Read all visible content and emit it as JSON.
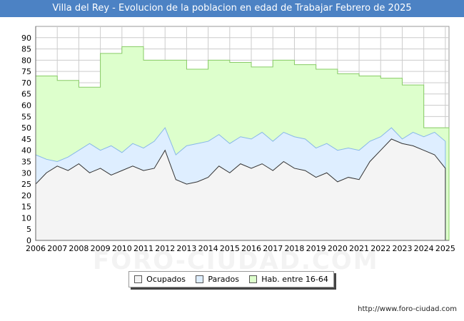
{
  "page": {
    "url": "http://www.foro-ciudad.com",
    "watermark": "FORO-CIUDAD.COM"
  },
  "colors": {
    "title_bg": "#4c82c4",
    "ocupados_fill": "#f4f4f4",
    "parados_fill": "#deeeff",
    "hab_fill": "#ddffcc",
    "hab_line": "#88cc66",
    "parados_line": "#88b8e8",
    "ocupados_line": "#333333"
  },
  "chart_data": {
    "type": "area",
    "title": "Villa del Rey - Evolucion de la poblacion en edad de Trabajar Febrero de 2025",
    "xlabel": "",
    "ylabel": "",
    "x_ticks": [
      "2006",
      "2007",
      "2008",
      "2009",
      "2010",
      "2011",
      "2012",
      "2013",
      "2014",
      "2015",
      "2016",
      "2017",
      "2018",
      "2019",
      "2020",
      "2021",
      "2022",
      "2023",
      "2024",
      "2025"
    ],
    "y_ticks": [
      "0",
      "5",
      "10",
      "15",
      "20",
      "25",
      "30",
      "35",
      "40",
      "45",
      "50",
      "55",
      "60",
      "65",
      "70",
      "75",
      "80",
      "85",
      "90"
    ],
    "ylim": [
      0,
      95
    ],
    "xlim": [
      2006,
      2025.17
    ],
    "grid": true,
    "legend": {
      "position": "bottom-center",
      "entries": [
        "Ocupados",
        "Parados",
        "Hab. entre 16-64"
      ]
    },
    "series": [
      {
        "name": "Hab. entre 16-64",
        "note": "annual step values",
        "years": [
          2006,
          2007,
          2008,
          2009,
          2010,
          2011,
          2012,
          2013,
          2014,
          2015,
          2016,
          2017,
          2018,
          2019,
          2020,
          2021,
          2022,
          2023,
          2024
        ],
        "values": [
          73,
          71,
          68,
          83,
          86,
          80,
          80,
          76,
          80,
          79,
          77,
          80,
          78,
          76,
          74,
          73,
          72,
          69,
          50
        ]
      },
      {
        "name": "Parados",
        "note": "stacked on Ocupados (plotted as total)",
        "years": [
          2006,
          2006.5,
          2007,
          2007.5,
          2008,
          2008.5,
          2009,
          2009.5,
          2010,
          2010.5,
          2011,
          2011.5,
          2012,
          2012.5,
          2013,
          2013.5,
          2014,
          2014.5,
          2015,
          2015.5,
          2016,
          2016.5,
          2017,
          2017.5,
          2018,
          2018.5,
          2019,
          2019.5,
          2020,
          2020.5,
          2021,
          2021.5,
          2022,
          2022.5,
          2023,
          2023.5,
          2024,
          2024.5,
          2025
        ],
        "values": [
          38,
          36,
          35,
          37,
          40,
          43,
          40,
          42,
          39,
          43,
          41,
          44,
          50,
          38,
          42,
          43,
          44,
          47,
          43,
          46,
          45,
          48,
          44,
          48,
          46,
          45,
          41,
          43,
          40,
          41,
          40,
          44,
          46,
          50,
          45,
          48,
          46,
          48,
          44
        ]
      },
      {
        "name": "Ocupados",
        "years": [
          2006,
          2006.5,
          2007,
          2007.5,
          2008,
          2008.5,
          2009,
          2009.5,
          2010,
          2010.5,
          2011,
          2011.5,
          2012,
          2012.5,
          2013,
          2013.5,
          2014,
          2014.5,
          2015,
          2015.5,
          2016,
          2016.5,
          2017,
          2017.5,
          2018,
          2018.5,
          2019,
          2019.5,
          2020,
          2020.5,
          2021,
          2021.5,
          2022,
          2022.5,
          2023,
          2023.5,
          2024,
          2024.5,
          2025
        ],
        "values": [
          25,
          30,
          33,
          31,
          34,
          30,
          32,
          29,
          31,
          33,
          31,
          32,
          40,
          27,
          25,
          26,
          28,
          33,
          30,
          34,
          32,
          34,
          31,
          35,
          32,
          31,
          28,
          30,
          26,
          28,
          27,
          35,
          40,
          45,
          43,
          42,
          40,
          38,
          32
        ]
      }
    ]
  },
  "legend_labels": {
    "ocupados": "Ocupados",
    "parados": "Parados",
    "hab": "Hab. entre 16-64"
  }
}
